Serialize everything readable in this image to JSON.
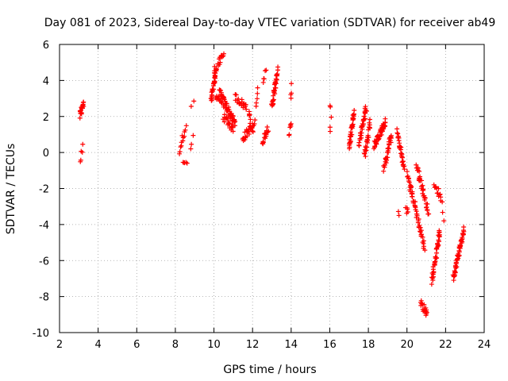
{
  "chart_data": {
    "type": "scatter",
    "title": "Day 081 of 2023, Sidereal Day-to-day VTEC variation (SDTVAR) for receiver ab49",
    "xlabel": "GPS time / hours",
    "ylabel": "SDTVAR / TECUs",
    "xlim": [
      2,
      24
    ],
    "ylim": [
      -10,
      6
    ],
    "xticks": [
      2,
      4,
      6,
      8,
      10,
      12,
      14,
      16,
      18,
      20,
      22,
      24
    ],
    "yticks": [
      -10,
      -8,
      -6,
      -4,
      -2,
      0,
      2,
      4,
      6
    ],
    "grid": true,
    "marker": "+",
    "color": "#ff0000",
    "segments": [
      {
        "x0": 3.05,
        "x1": 3.25,
        "y0": 2.0,
        "y1": 2.8,
        "n": 18
      },
      {
        "x0": 3.05,
        "x1": 3.2,
        "y0": -0.5,
        "y1": 0.3,
        "n": 5
      },
      {
        "x0": 8.2,
        "x1": 8.55,
        "y0": 0.1,
        "y1": 1.5,
        "n": 12
      },
      {
        "x0": 8.4,
        "x1": 8.6,
        "y0": -0.7,
        "y1": -0.5,
        "n": 5
      },
      {
        "x0": 8.8,
        "x1": 8.9,
        "y0": 0.0,
        "y1": 0.9,
        "n": 3
      },
      {
        "x0": 8.85,
        "x1": 8.95,
        "y0": 2.5,
        "y1": 2.9,
        "n": 2
      },
      {
        "x0": 9.85,
        "x1": 10.1,
        "y0": 2.8,
        "y1": 4.5,
        "n": 30
      },
      {
        "x0": 10.0,
        "x1": 10.5,
        "y0": 4.5,
        "y1": 5.4,
        "n": 20
      },
      {
        "x0": 10.1,
        "x1": 10.5,
        "y0": 3.2,
        "y1": 2.7,
        "n": 15
      },
      {
        "x0": 10.3,
        "x1": 11.1,
        "y0": 3.3,
        "y1": 1.6,
        "n": 45
      },
      {
        "x0": 10.5,
        "x1": 11.0,
        "y0": 2.0,
        "y1": 1.3,
        "n": 20
      },
      {
        "x0": 11.1,
        "x1": 11.7,
        "y0": 3.1,
        "y1": 2.5,
        "n": 20
      },
      {
        "x0": 11.5,
        "x1": 12.1,
        "y0": 0.8,
        "y1": 1.6,
        "n": 25
      },
      {
        "x0": 11.8,
        "x1": 12.0,
        "y0": 2.3,
        "y1": 1.2,
        "n": 10
      },
      {
        "x0": 12.2,
        "x1": 12.25,
        "y0": 2.6,
        "y1": 3.4,
        "n": 5
      },
      {
        "x0": 12.5,
        "x1": 12.8,
        "y0": 0.6,
        "y1": 1.4,
        "n": 15
      },
      {
        "x0": 12.55,
        "x1": 12.7,
        "y0": 4.1,
        "y1": 4.4,
        "n": 5
      },
      {
        "x0": 13.0,
        "x1": 13.3,
        "y0": 2.5,
        "y1": 4.6,
        "n": 35
      },
      {
        "x0": 13.9,
        "x1": 14.0,
        "y0": 0.9,
        "y1": 1.6,
        "n": 6
      },
      {
        "x0": 13.95,
        "x1": 14.0,
        "y0": 3.0,
        "y1": 3.7,
        "n": 4
      },
      {
        "x0": 16.0,
        "x1": 16.05,
        "y0": 1.1,
        "y1": 1.9,
        "n": 3
      },
      {
        "x0": 16.0,
        "x1": 16.05,
        "y0": 2.5,
        "y1": 2.6,
        "n": 2
      },
      {
        "x0": 17.0,
        "x1": 17.25,
        "y0": 0.2,
        "y1": 2.3,
        "n": 35
      },
      {
        "x0": 17.5,
        "x1": 17.9,
        "y0": 0.5,
        "y1": 2.5,
        "n": 35
      },
      {
        "x0": 17.8,
        "x1": 18.1,
        "y0": -0.2,
        "y1": 1.7,
        "n": 25
      },
      {
        "x0": 18.3,
        "x1": 18.9,
        "y0": 0.4,
        "y1": 1.7,
        "n": 45
      },
      {
        "x0": 18.8,
        "x1": 19.2,
        "y0": -0.9,
        "y1": 1.0,
        "n": 30
      },
      {
        "x0": 19.5,
        "x1": 19.85,
        "y0": 1.1,
        "y1": -0.9,
        "n": 30
      },
      {
        "x0": 19.55,
        "x1": 19.6,
        "y0": -3.4,
        "y1": -3.4,
        "n": 2
      },
      {
        "x0": 19.95,
        "x1": 20.05,
        "y0": -3.0,
        "y1": -3.3,
        "n": 5
      },
      {
        "x0": 20.0,
        "x1": 20.3,
        "y0": -1.2,
        "y1": -2.4,
        "n": 15
      },
      {
        "x0": 20.2,
        "x1": 20.9,
        "y0": -2.0,
        "y1": -5.3,
        "n": 40
      },
      {
        "x0": 20.5,
        "x1": 21.1,
        "y0": -0.7,
        "y1": -3.3,
        "n": 35
      },
      {
        "x0": 20.7,
        "x1": 21.05,
        "y0": -8.4,
        "y1": -8.9,
        "n": 18
      },
      {
        "x0": 21.3,
        "x1": 21.7,
        "y0": -7.1,
        "y1": -4.4,
        "n": 40
      },
      {
        "x0": 21.4,
        "x1": 21.8,
        "y0": -1.7,
        "y1": -2.6,
        "n": 15
      },
      {
        "x0": 21.85,
        "x1": 21.9,
        "y0": -3.5,
        "y1": -3.6,
        "n": 2
      },
      {
        "x0": 22.4,
        "x1": 22.95,
        "y0": -6.9,
        "y1": -4.3,
        "n": 55
      }
    ]
  }
}
